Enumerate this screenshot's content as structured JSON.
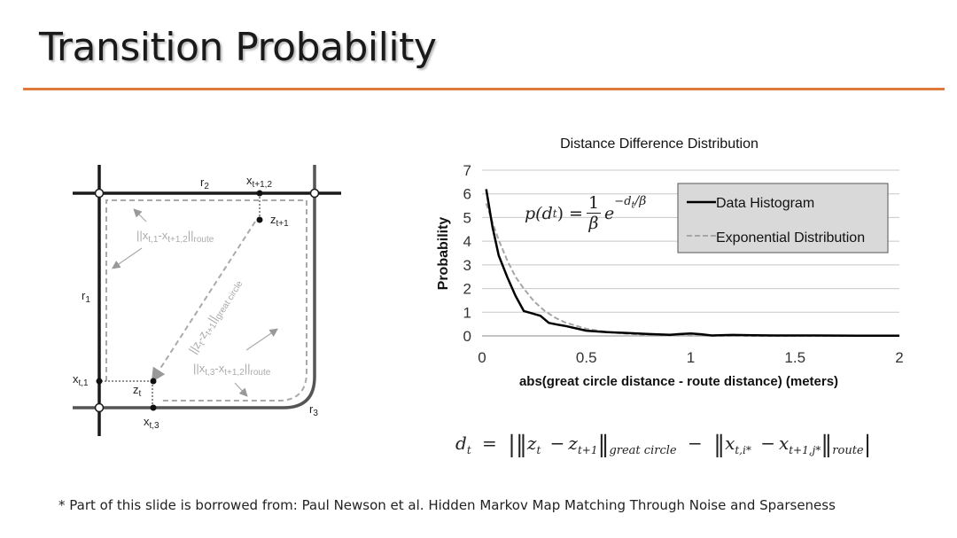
{
  "slide": {
    "title": "Transition Probability",
    "footnote": "* Part of this slide is borrowed from: Paul Newson et al. Hidden Markov Map Matching Through Noise and Sparseness"
  },
  "diagram": {
    "r1": "r",
    "r1_sub": "1",
    "r2": "r",
    "r2_sub": "2",
    "r3": "r",
    "r3_sub": "3",
    "x_t1": "x",
    "x_t1_sub": "t,1",
    "x_t3": "x",
    "x_t3_sub": "t,3",
    "x_t1_2": "x",
    "x_t1_2_sub": "t+1,2",
    "z_t": "z",
    "z_t_sub": "t",
    "z_t1": "z",
    "z_t1_sub": "t+1",
    "route_top": "||x",
    "route_top_sub1": "t,1",
    "route_top_mid": "-x",
    "route_top_sub2": "t+1,2",
    "route_top_end": "||",
    "route_top_sub3": "route",
    "route_bottom": "||x",
    "route_bottom_sub1": "t,3",
    "route_bottom_mid": "-x",
    "route_bottom_sub2": "t+1,2",
    "route_bottom_end": "||",
    "route_bottom_sub3": "route",
    "great_circle": "||z",
    "great_circle_sub1": "t",
    "great_circle_mid": "-z",
    "great_circle_sub2": "t+1",
    "great_circle_end": "||",
    "great_circle_sub3": "great circle"
  },
  "chart_data": {
    "type": "line",
    "title": "Distance Difference Distribution",
    "xlabel": "abs(great circle distance - route distance)  (meters)",
    "ylabel": "Probability",
    "xlim": [
      0,
      2
    ],
    "ylim": [
      0,
      7
    ],
    "x_ticks": [
      "0",
      "0.5",
      "1",
      "1.5",
      "2"
    ],
    "y_ticks": [
      "0",
      "1",
      "2",
      "3",
      "4",
      "5",
      "6",
      "7"
    ],
    "grid": "horizontal",
    "legend_position": "top-right",
    "series": [
      {
        "name": "Data Histogram",
        "color": "#000000",
        "style": "solid",
        "x": [
          0.02,
          0.05,
          0.08,
          0.12,
          0.16,
          0.2,
          0.24,
          0.28,
          0.32,
          0.36,
          0.4,
          0.5,
          0.6,
          0.7,
          0.8,
          0.9,
          0.95,
          1.0,
          1.05,
          1.1,
          1.2,
          1.3,
          1.4,
          1.6,
          1.8,
          2.0
        ],
        "y": [
          6.2,
          4.6,
          3.4,
          2.5,
          1.7,
          1.05,
          0.95,
          0.85,
          0.55,
          0.48,
          0.42,
          0.22,
          0.16,
          0.12,
          0.08,
          0.05,
          0.08,
          0.1,
          0.07,
          0.02,
          0.04,
          0.03,
          0.02,
          0.02,
          0.01,
          0.01
        ]
      },
      {
        "name": "Exponential Distribution",
        "color": "#a6a6a6",
        "style": "dashed",
        "x": [
          0.02,
          0.05,
          0.08,
          0.12,
          0.16,
          0.2,
          0.25,
          0.3,
          0.35,
          0.4,
          0.5,
          0.6,
          0.7,
          0.8,
          0.9,
          1.0,
          1.2,
          1.4,
          1.6,
          1.8,
          2.0
        ],
        "y": [
          5.6,
          4.8,
          4.05,
          3.2,
          2.5,
          2.0,
          1.45,
          1.06,
          0.77,
          0.56,
          0.3,
          0.16,
          0.085,
          0.045,
          0.024,
          0.013,
          0.004,
          0.001,
          0.0,
          0.0,
          0.0
        ]
      }
    ]
  },
  "formulas": {
    "pdf_lhs": "p(d",
    "pdf_lhs_sub": "t",
    "pdf_lhs_end": ") =",
    "pdf_num": "1",
    "pdf_den": "β",
    "pdf_e": "e",
    "pdf_exp": "−d",
    "pdf_exp_sub": "t",
    "pdf_exp_den": "/β",
    "dt_lhs": "d",
    "dt_lhs_sub": "t",
    "dt_eq": "=",
    "dt_t1": "z",
    "dt_t1_sub": "t",
    "dt_minus": "−",
    "dt_t2": "z",
    "dt_t2_sub": "t+1",
    "dt_gc": "great circle",
    "dt_x1": "x",
    "dt_x1_sub": "t,i*",
    "dt_x2": "x",
    "dt_x2_sub": "t+1,j*",
    "dt_route": "route"
  }
}
